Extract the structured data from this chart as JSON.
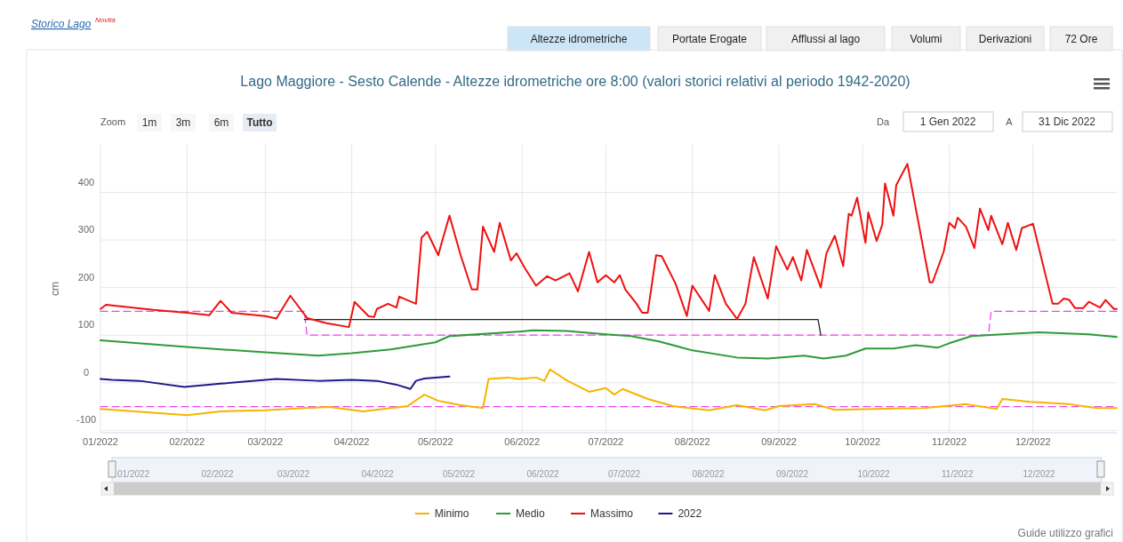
{
  "chart_data": {
    "type": "line",
    "title": "Lago Maggiore - Sesto Calende - Altezze idrometriche ore 8:00 (valori storici relativi al periodo 1942-2020)",
    "ylabel": "cm",
    "xlim": [
      "2022-01-01",
      "2022-12-31"
    ],
    "xticks": [
      {
        "value": "2022-01-01",
        "label": "01/2022"
      },
      {
        "value": "2022-02-01",
        "label": "02/2022"
      },
      {
        "value": "2022-03-01",
        "label": "03/2022"
      },
      {
        "value": "2022-04-01",
        "label": "04/2022"
      },
      {
        "value": "2022-05-01",
        "label": "05/2022"
      },
      {
        "value": "2022-06-01",
        "label": "06/2022"
      },
      {
        "value": "2022-07-01",
        "label": "07/2022"
      },
      {
        "value": "2022-08-01",
        "label": "08/2022"
      },
      {
        "value": "2022-09-01",
        "label": "09/2022"
      },
      {
        "value": "2022-10-01",
        "label": "10/2022"
      },
      {
        "value": "2022-11-01",
        "label": "11/2022"
      },
      {
        "value": "2022-12-01",
        "label": "12/2022"
      }
    ],
    "ylim": [
      -105,
      500
    ],
    "yticks": [
      -100,
      0,
      100,
      200,
      300,
      400
    ],
    "grid": true,
    "legend": "bottom",
    "marker": "none",
    "annotations": [
      "Storico Lago",
      "Novità",
      "Altezze idrometriche",
      "Portate Erogate",
      "Afflussi al lago",
      "Volumi",
      "Derivazioni",
      "72 Ore",
      "Zoom",
      "1m",
      "3m",
      "6m",
      "Tutto",
      "Da",
      "1 Gen 2022",
      "A",
      "31 Dic 2022",
      "Guide utilizzo grafici"
    ],
    "series": [
      {
        "color": "#ee44ee",
        "line_style": "dashed",
        "x": [
          "2022-01-01",
          "2022-03-15",
          "2022-03-16",
          "2022-11-15",
          "2022-11-16",
          "2022-12-31"
        ],
        "values": [
          150,
          150,
          100,
          100,
          150,
          150
        ]
      },
      {
        "color": "#ee44ee",
        "line_style": "dashed",
        "x": [
          "2022-01-01",
          "2022-12-31"
        ],
        "values": [
          -50,
          -50
        ]
      },
      {
        "color": "#222222",
        "line_style": "solid",
        "x": [
          "2022-03-15",
          "2022-09-15",
          "2022-09-16"
        ],
        "values": [
          133,
          133,
          100
        ]
      },
      {
        "name": "Minimo",
        "color": "#f5b400",
        "line_style": "solid",
        "x": [
          "2022-01-01",
          "2022-02-01",
          "2022-02-13",
          "2022-03-01",
          "2022-03-15",
          "2022-03-24",
          "2022-04-05",
          "2022-04-21",
          "2022-04-27",
          "2022-05-02",
          "2022-05-10",
          "2022-05-18",
          "2022-05-20",
          "2022-05-27",
          "2022-05-31",
          "2022-06-06",
          "2022-06-09",
          "2022-06-11",
          "2022-06-17",
          "2022-06-25",
          "2022-07-01",
          "2022-07-04",
          "2022-07-07",
          "2022-07-16",
          "2022-07-25",
          "2022-08-07",
          "2022-08-17",
          "2022-08-27",
          "2022-09-01",
          "2022-09-14",
          "2022-09-21",
          "2022-10-23",
          "2022-11-07",
          "2022-11-18",
          "2022-11-20",
          "2022-11-30",
          "2022-12-14",
          "2022-12-24",
          "2022-12-31"
        ],
        "values": [
          -55,
          -68,
          -60,
          -58,
          -53,
          -51,
          -60,
          -49,
          -25,
          -38,
          -47,
          -53,
          8,
          11,
          8,
          11,
          4,
          28,
          5,
          -19,
          -11,
          -25,
          -13,
          -34,
          -49,
          -58,
          -47,
          -58,
          -49,
          -45,
          -57,
          -53,
          -45,
          -55,
          -34,
          -40,
          -45,
          -53,
          -53
        ]
      },
      {
        "name": "Medio",
        "color": "#2e9a3a",
        "line_style": "solid",
        "x": [
          "2022-01-01",
          "2022-02-01",
          "2022-03-01",
          "2022-03-20",
          "2022-04-01",
          "2022-04-15",
          "2022-05-01",
          "2022-05-06",
          "2022-06-01",
          "2022-06-05",
          "2022-06-17",
          "2022-07-01",
          "2022-07-10",
          "2022-07-20",
          "2022-08-01",
          "2022-08-17",
          "2022-08-28",
          "2022-09-10",
          "2022-09-17",
          "2022-09-25",
          "2022-10-02",
          "2022-10-12",
          "2022-10-20",
          "2022-10-28",
          "2022-11-01",
          "2022-11-09",
          "2022-11-20",
          "2022-12-03",
          "2022-12-21",
          "2022-12-31"
        ],
        "values": [
          89,
          75,
          64,
          57,
          62,
          70,
          85,
          98,
          108,
          110,
          109,
          102,
          98,
          87,
          68,
          53,
          51,
          57,
          51,
          57,
          72,
          72,
          79,
          74,
          83,
          98,
          102,
          106,
          102,
          96
        ]
      },
      {
        "name": "Massimo",
        "color": "#ee1111",
        "line_style": "solid",
        "x": [
          "2022-01-01",
          "2022-01-03",
          "2022-01-20",
          "2022-02-01",
          "2022-02-09",
          "2022-02-13",
          "2022-02-17",
          "2022-03-01",
          "2022-03-05",
          "2022-03-10",
          "2022-03-16",
          "2022-03-23",
          "2022-03-31",
          "2022-04-02",
          "2022-04-07",
          "2022-04-09",
          "2022-04-10",
          "2022-04-14",
          "2022-04-17",
          "2022-04-18",
          "2022-04-24",
          "2022-04-26",
          "2022-04-28",
          "2022-05-02",
          "2022-05-03",
          "2022-05-06",
          "2022-05-10",
          "2022-05-14",
          "2022-05-16",
          "2022-05-18",
          "2022-05-22",
          "2022-05-24",
          "2022-05-28",
          "2022-05-30",
          "2022-06-02",
          "2022-06-06",
          "2022-06-10",
          "2022-06-13",
          "2022-06-16",
          "2022-06-18",
          "2022-06-21",
          "2022-06-25",
          "2022-06-28",
          "2022-07-01",
          "2022-07-04",
          "2022-07-06",
          "2022-07-08",
          "2022-07-12",
          "2022-07-14",
          "2022-07-16",
          "2022-07-19",
          "2022-07-21",
          "2022-07-26",
          "2022-07-30",
          "2022-08-01",
          "2022-08-07",
          "2022-08-09",
          "2022-08-13",
          "2022-08-17",
          "2022-08-20",
          "2022-08-23",
          "2022-08-28",
          "2022-08-31",
          "2022-09-04",
          "2022-09-06",
          "2022-09-09",
          "2022-09-11",
          "2022-09-16",
          "2022-09-18",
          "2022-09-21",
          "2022-09-24",
          "2022-09-26",
          "2022-09-27",
          "2022-09-29",
          "2022-10-02",
          "2022-10-03",
          "2022-10-06",
          "2022-10-08",
          "2022-10-09",
          "2022-10-12",
          "2022-10-13",
          "2022-10-17",
          "2022-10-25",
          "2022-10-26",
          "2022-10-30",
          "2022-11-01",
          "2022-11-03",
          "2022-11-04",
          "2022-11-07",
          "2022-11-10",
          "2022-11-12",
          "2022-11-15",
          "2022-11-16",
          "2022-11-20",
          "2022-11-22",
          "2022-11-25",
          "2022-11-27",
          "2022-12-01",
          "2022-12-08",
          "2022-12-10",
          "2022-12-12",
          "2022-12-14",
          "2022-12-16",
          "2022-12-19",
          "2022-12-21",
          "2022-12-25",
          "2022-12-27",
          "2022-12-30",
          "2022-12-31"
        ],
        "values": [
          155,
          164,
          153,
          147,
          142,
          172,
          147,
          140,
          135,
          183,
          136,
          125,
          117,
          170,
          140,
          138,
          155,
          166,
          158,
          181,
          166,
          305,
          317,
          268,
          290,
          351,
          268,
          196,
          196,
          328,
          275,
          336,
          257,
          272,
          241,
          204,
          224,
          215,
          224,
          230,
          192,
          275,
          211,
          226,
          211,
          226,
          196,
          166,
          147,
          147,
          268,
          266,
          208,
          140,
          204,
          151,
          226,
          166,
          134,
          166,
          264,
          177,
          287,
          238,
          264,
          215,
          279,
          200,
          272,
          309,
          245,
          355,
          351,
          389,
          294,
          358,
          298,
          332,
          419,
          351,
          415,
          460,
          211,
          211,
          275,
          336,
          325,
          347,
          328,
          283,
          366,
          321,
          351,
          291,
          336,
          279,
          325,
          334,
          166,
          166,
          177,
          174,
          157,
          157,
          170,
          158,
          174,
          155,
          155
        ]
      },
      {
        "name": "2022",
        "color": "#1f1a8a",
        "line_style": "solid",
        "x": [
          "2022-01-01",
          "2022-01-05",
          "2022-01-15",
          "2022-01-31",
          "2022-02-13",
          "2022-03-05",
          "2022-03-20",
          "2022-04-01",
          "2022-04-10",
          "2022-04-17",
          "2022-04-22",
          "2022-04-24",
          "2022-04-27",
          "2022-05-06"
        ],
        "values": [
          8,
          6,
          4,
          -9,
          -2,
          8,
          4,
          6,
          4,
          -4,
          -13,
          4,
          9,
          13
        ]
      }
    ]
  }
}
